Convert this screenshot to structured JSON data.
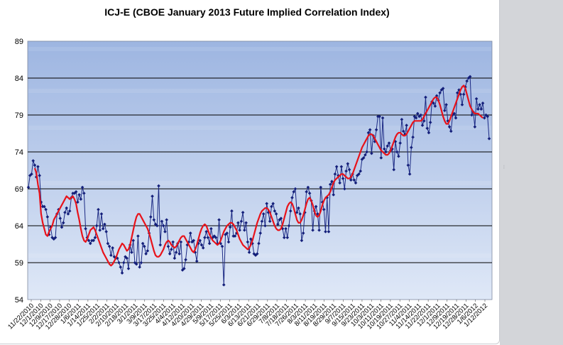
{
  "chart_data": {
    "type": "line",
    "title": "ICJ-E (CBOE January 2013 Future Implied Correlation Index)",
    "xlabel": "",
    "ylabel": "",
    "ylim": [
      54,
      89
    ],
    "yticks": [
      54,
      59,
      64,
      69,
      74,
      79,
      84,
      89
    ],
    "grid": true,
    "legend": "none",
    "x_tick_labels": [
      "11/22/2010",
      "12/1/2010",
      "12/9/2010",
      "12/17/2010",
      "12/28/2010",
      "1/6/2011",
      "1/14/2011",
      "1/25/2011",
      "2/2/2011",
      "2/10/2011",
      "2/18/2011",
      "3/1/2011",
      "3/9/2011",
      "3/17/2011",
      "3/25/2011",
      "4/4/2011",
      "4/12/2011",
      "4/20/2011",
      "4/29/2011",
      "5/9/2011",
      "5/17/2011",
      "5/25/2011",
      "6/3/2011",
      "6/13/2011",
      "6/21/2011",
      "6/29/2011",
      "7/8/2011",
      "7/18/2011",
      "7/26/2011",
      "8/3/2011",
      "8/11/2011",
      "8/19/2011",
      "8/29/2011",
      "9/7/2011",
      "9/15/2011",
      "9/23/2011",
      "10/3/2011",
      "10/11/2011",
      "10/19/2011",
      "10/27/2011",
      "11/4/2011",
      "11/14/2011",
      "11/22/2011",
      "12/1/2011",
      "12/9/2011",
      "12/19/2011",
      "12/28/2011",
      "1/6/2012",
      "1/12/2012"
    ],
    "series": [
      {
        "marker": "diamond",
        "values": [
          69.2,
          70.8,
          71.0,
          72.8,
          72.2,
          70.6,
          72.0,
          70.8,
          67.2,
          66.6,
          66.6,
          66.2,
          65.2,
          62.8,
          63.8,
          62.4,
          62.2,
          62.4,
          65.6,
          66.2,
          65.0,
          63.8,
          64.4,
          65.8,
          66.4,
          65.6,
          66.0,
          67.8,
          68.4,
          68.4,
          68.6,
          67.2,
          68.2,
          67.6,
          69.2,
          68.4,
          63.6,
          62.4,
          62.0,
          61.6,
          62.0,
          62.0,
          62.4,
          64.0,
          66.2,
          63.4,
          65.6,
          63.6,
          64.2,
          63.2,
          61.6,
          61.2,
          60.0,
          61.0,
          59.8,
          59.6,
          59.6,
          59.0,
          58.4,
          57.6,
          59.0,
          59.8,
          59.6,
          58.2,
          61.4,
          60.4,
          62.0,
          59.0,
          58.8,
          62.6,
          58.4,
          59.0,
          61.6,
          61.2,
          60.2,
          60.6,
          63.0,
          65.2,
          68.0,
          64.8,
          64.2,
          64.0,
          69.4,
          61.4,
          64.6,
          64.0,
          63.2,
          64.8,
          61.2,
          60.2,
          60.8,
          61.8,
          59.6,
          60.4,
          61.6,
          60.2,
          61.8,
          58.0,
          58.2,
          59.4,
          61.4,
          61.8,
          63.0,
          61.8,
          62.0,
          60.4,
          59.2,
          61.6,
          62.0,
          61.4,
          61.0,
          62.4,
          63.2,
          62.4,
          61.6,
          63.6,
          62.4,
          62.6,
          62.4,
          61.6,
          64.8,
          61.6,
          61.2,
          56.0,
          62.8,
          63.0,
          61.8,
          63.8,
          66.0,
          62.6,
          62.6,
          63.0,
          64.4,
          63.4,
          64.6,
          65.8,
          63.4,
          64.4,
          61.8,
          60.4,
          62.2,
          61.6,
          60.2,
          60.0,
          60.2,
          61.6,
          63.0,
          64.6,
          65.6,
          64.0,
          67.0,
          65.8,
          64.6,
          66.6,
          67.0,
          66.0,
          65.6,
          64.2,
          64.8,
          65.0,
          63.6,
          62.4,
          63.6,
          62.4,
          64.0,
          66.0,
          67.8,
          68.6,
          69.0,
          65.8,
          66.4,
          65.6,
          62.0,
          63.0,
          65.8,
          68.6,
          69.2,
          68.4,
          67.4,
          63.4,
          66.0,
          66.6,
          65.6,
          63.4,
          69.2,
          67.2,
          66.2,
          63.2,
          67.8,
          63.2,
          69.6,
          70.0,
          68.2,
          71.0,
          72.0,
          70.8,
          69.8,
          72.0,
          70.4,
          69.0,
          71.4,
          72.4,
          71.6,
          70.2,
          71.0,
          70.2,
          69.8,
          70.8,
          71.0,
          71.4,
          73.0,
          73.2,
          73.6,
          74.0,
          76.6,
          77.0,
          73.8,
          76.2,
          75.4,
          77.0,
          78.8,
          78.8,
          73.2,
          78.6,
          74.4,
          74.0,
          74.8,
          75.2,
          74.2,
          74.4,
          71.6,
          75.4,
          74.0,
          73.4,
          75.2,
          78.4,
          76.8,
          76.4,
          77.6,
          72.2,
          71.0,
          74.6,
          76.0,
          78.8,
          78.6,
          79.2,
          78.8,
          79.0,
          77.6,
          78.2,
          81.4,
          77.2,
          76.6,
          78.0,
          80.8,
          80.6,
          80.2,
          81.6,
          81.0,
          82.0,
          82.4,
          82.6,
          79.6,
          80.4,
          78.2,
          77.4,
          76.8,
          79.0,
          79.2,
          78.6,
          82.0,
          82.4,
          81.8,
          80.4,
          81.8,
          82.8,
          83.6,
          84.0,
          84.2,
          79.0,
          79.4,
          77.4,
          81.2,
          79.8,
          80.4,
          79.8,
          80.6,
          78.6,
          79.0,
          78.8,
          75.8
        ]
      },
      {
        "marker": "none",
        "values": [
          null,
          null,
          null,
          null,
          71.8,
          71.2,
          69.6,
          68.4,
          65.6,
          64.4,
          63.6,
          62.8,
          62.6,
          63.2,
          63.6,
          64.0,
          64.8,
          65.2,
          65.6,
          66.0,
          66.4,
          66.8,
          67.2,
          67.6,
          68.0,
          67.8,
          67.6,
          67.8,
          68.0,
          67.6,
          67.0,
          65.8,
          64.8,
          63.6,
          62.6,
          62.0,
          61.8,
          62.2,
          62.8,
          63.4,
          63.6,
          63.8,
          63.4,
          62.8,
          62.2,
          61.6,
          61.0,
          60.4,
          60.0,
          59.6,
          59.2,
          58.8,
          58.6,
          58.8,
          59.2,
          59.6,
          60.2,
          60.8,
          61.2,
          61.6,
          61.4,
          61.0,
          60.6,
          60.8,
          61.4,
          62.4,
          63.4,
          64.4,
          65.2,
          65.6,
          65.6,
          65.2,
          64.8,
          64.4,
          64.0,
          63.6,
          63.0,
          62.2,
          61.4,
          60.6,
          60.0,
          59.8,
          59.8,
          60.0,
          60.4,
          60.8,
          61.4,
          61.8,
          62.0,
          61.8,
          61.4,
          61.2,
          61.0,
          61.2,
          61.6,
          62.0,
          62.4,
          62.6,
          62.6,
          62.2,
          61.8,
          61.4,
          61.0,
          60.6,
          60.4,
          60.8,
          61.4,
          62.2,
          63.0,
          63.6,
          64.0,
          64.2,
          64.0,
          63.4,
          62.8,
          62.4,
          62.0,
          61.8,
          61.6,
          61.4,
          61.6,
          62.0,
          62.6,
          63.2,
          63.6,
          64.0,
          64.2,
          64.4,
          64.4,
          64.2,
          63.8,
          63.4,
          62.8,
          62.2,
          61.8,
          61.4,
          61.2,
          61.0,
          60.8,
          61.0,
          61.4,
          62.0,
          62.8,
          63.6,
          64.4,
          65.0,
          65.6,
          66.0,
          66.2,
          66.4,
          66.4,
          66.2,
          65.8,
          65.2,
          64.6,
          64.0,
          63.6,
          63.4,
          63.4,
          63.6,
          64.2,
          65.0,
          65.8,
          66.6,
          67.0,
          67.2,
          67.0,
          66.4,
          65.6,
          64.8,
          64.4,
          64.4,
          64.8,
          65.4,
          66.2,
          67.0,
          67.6,
          67.8,
          67.4,
          66.8,
          66.0,
          65.4,
          65.2,
          65.4,
          66.0,
          66.8,
          67.4,
          67.8,
          68.0,
          68.2,
          68.6,
          69.2,
          69.8,
          70.2,
          70.4,
          70.6,
          70.8,
          71.0,
          71.0,
          70.8,
          70.6,
          70.4,
          70.4,
          70.6,
          71.0,
          71.6,
          72.2,
          72.8,
          73.4,
          74.0,
          74.6,
          75.0,
          75.4,
          75.8,
          76.2,
          76.4,
          76.4,
          76.2,
          75.8,
          75.4,
          75.0,
          74.6,
          74.2,
          74.0,
          73.8,
          73.6,
          73.6,
          73.8,
          74.2,
          74.8,
          75.4,
          76.0,
          76.4,
          76.6,
          76.6,
          76.4,
          76.2,
          76.2,
          76.4,
          76.8,
          77.2,
          77.6,
          78.0,
          78.2,
          78.2,
          78.2,
          78.2,
          78.2,
          78.4,
          78.8,
          79.2,
          79.6,
          80.0,
          80.4,
          80.8,
          81.2,
          81.4,
          81.4,
          81.0,
          80.4,
          79.6,
          78.8,
          78.2,
          77.8,
          77.8,
          78.2,
          78.8,
          79.4,
          80.0,
          80.6,
          81.2,
          81.8,
          82.4,
          82.8,
          83.0,
          82.6,
          81.8,
          81.0,
          80.2,
          79.8,
          79.4,
          79.2,
          79.2,
          79.2,
          79.0,
          78.8,
          78.6
        ]
      }
    ],
    "colors": {
      "series_line": "#1c2a84",
      "series_marker": "#141f7a",
      "moving_average": "#e8121a",
      "plot_top": "#9fb6e2",
      "plot_bottom": "#dde7f7",
      "gridline": "#000000"
    }
  }
}
